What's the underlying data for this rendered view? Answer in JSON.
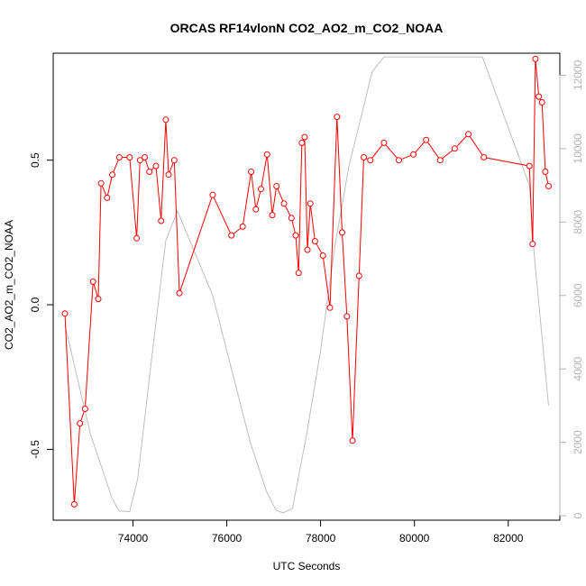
{
  "chart_data": {
    "type": "line",
    "title": "ORCAS RF14vlonN CO2_AO2_m_CO2_NOAA",
    "xlabel": "UTC Seconds",
    "ylabel": "CO2_AO2_m_CO2_NOAA",
    "xlim": [
      72300,
      83100
    ],
    "ylim": [
      -0.745,
      0.87
    ],
    "y2lim": [
      -120,
      12600
    ],
    "x_ticks": [
      74000,
      76000,
      78000,
      80000,
      82000
    ],
    "y_ticks": [
      -0.5,
      0.0,
      0.5
    ],
    "y2_ticks": [
      0,
      2000,
      4000,
      6000,
      8000,
      10000,
      12000
    ],
    "grid": false,
    "legend": "none",
    "colors": {
      "primary": "#ff0000",
      "secondary": "#bebebe",
      "right_axis": "#b3b3b3"
    },
    "series": [
      {
        "axis": "left",
        "color": "#ff0000",
        "marker": "open-circle",
        "x": [
          72550,
          72750,
          72870,
          72980,
          73150,
          73260,
          73320,
          73450,
          73560,
          73710,
          73930,
          74080,
          74150,
          74250,
          74350,
          74490,
          74600,
          74700,
          74760,
          74880,
          74990,
          75700,
          76100,
          76340,
          76520,
          76620,
          76730,
          76860,
          76970,
          77060,
          77220,
          77380,
          77470,
          77530,
          77600,
          77660,
          77720,
          77780,
          77880,
          78050,
          78200,
          78350,
          78460,
          78560,
          78680,
          78820,
          78920,
          79060,
          79350,
          79670,
          79980,
          80250,
          80550,
          80860,
          81150,
          81480,
          82450,
          82520,
          82580,
          82650,
          82720,
          82790,
          82860
        ],
        "y": [
          -0.03,
          -0.69,
          -0.41,
          -0.36,
          0.08,
          0.02,
          0.42,
          0.37,
          0.45,
          0.51,
          0.51,
          0.23,
          0.5,
          0.51,
          0.46,
          0.48,
          0.29,
          0.64,
          0.45,
          0.5,
          0.04,
          0.38,
          0.24,
          0.27,
          0.46,
          0.33,
          0.4,
          0.52,
          0.31,
          0.41,
          0.35,
          0.3,
          0.24,
          0.11,
          0.56,
          0.58,
          0.19,
          0.35,
          0.22,
          0.17,
          -0.01,
          0.65,
          0.25,
          -0.04,
          -0.47,
          0.1,
          0.51,
          0.5,
          0.56,
          0.5,
          0.52,
          0.57,
          0.5,
          0.54,
          0.59,
          0.51,
          0.48,
          0.21,
          0.85,
          0.72,
          0.7,
          0.46,
          0.41
        ]
      },
      {
        "axis": "right",
        "color": "#bebebe",
        "marker": "none",
        "x": [
          72550,
          73100,
          73550,
          73700,
          73930,
          74100,
          74400,
          74700,
          74950,
          75700,
          76100,
          76500,
          76850,
          77050,
          77200,
          77400,
          77700,
          78000,
          78300,
          78600,
          79100,
          79350,
          81450,
          82450,
          82560,
          82860
        ],
        "y": [
          5200,
          2200,
          500,
          130,
          110,
          1000,
          4300,
          7500,
          8300,
          6000,
          4000,
          2000,
          650,
          150,
          80,
          200,
          2200,
          4500,
          7300,
          9500,
          12100,
          12500,
          12500,
          9000,
          7000,
          3000
        ]
      }
    ]
  }
}
